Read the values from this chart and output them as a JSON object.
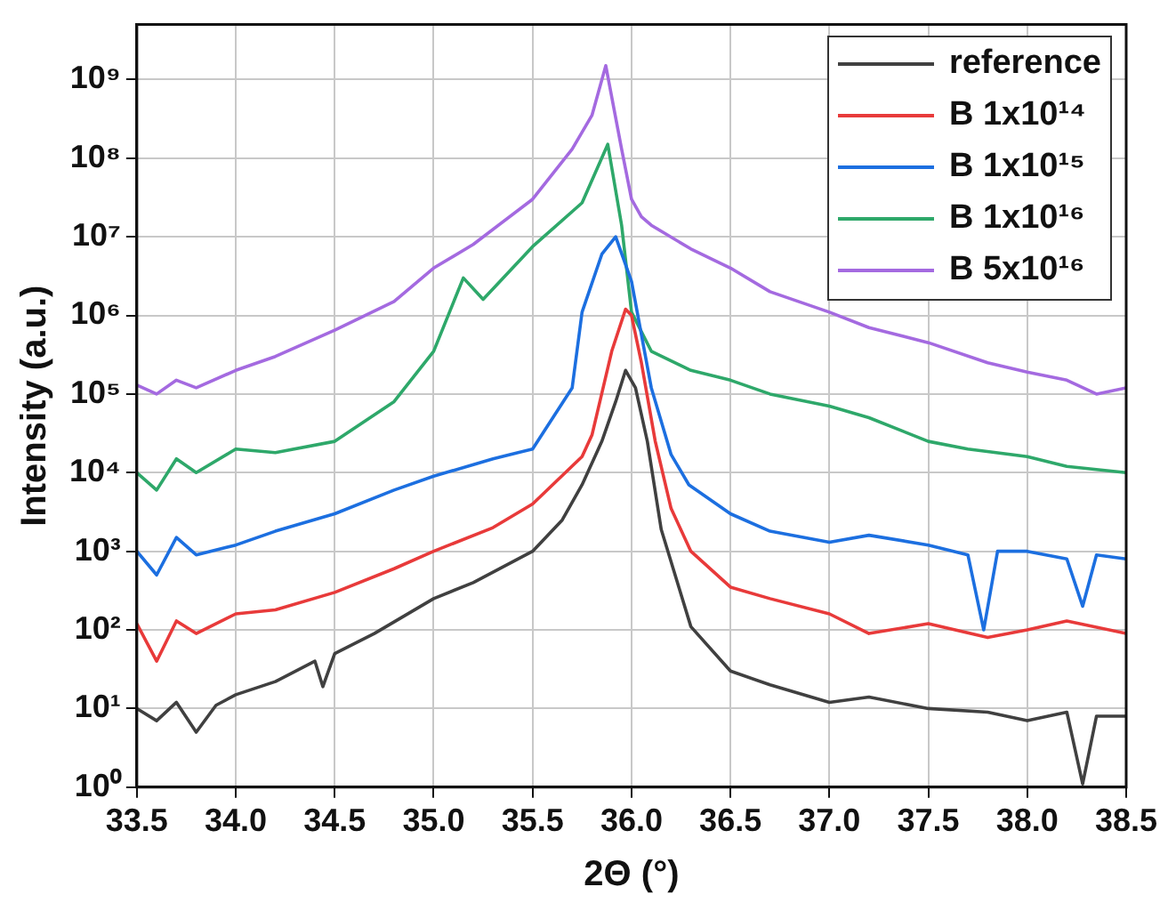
{
  "chart_data": {
    "type": "line",
    "xlabel": "2Θ (°)",
    "ylabel": "Intensity (a.u.)",
    "log": "y",
    "grid": true,
    "legend": "top right",
    "marker": "none",
    "line_style": "solid",
    "xlim": [
      33.5,
      38.5
    ],
    "xticks": [
      33.5,
      {
        "value": 34,
        "label": "34.0"
      },
      34.5,
      {
        "value": 35,
        "label": "35.0"
      },
      35.5,
      {
        "value": 36,
        "label": "36.0"
      },
      36.5,
      {
        "value": 37,
        "label": "37.0"
      },
      37.5,
      {
        "value": 38,
        "label": "38.0"
      },
      38.5
    ],
    "ylim": [
      1,
      5000000000
    ],
    "yticks": [
      {
        "value": 1,
        "label": "10⁰"
      },
      {
        "value": 10,
        "label": "10¹"
      },
      {
        "value": 100,
        "label": "10²"
      },
      {
        "value": 1000,
        "label": "10³"
      },
      {
        "value": 10000,
        "label": "10⁴"
      },
      {
        "value": 100000,
        "label": "10⁵"
      },
      {
        "value": 1000000,
        "label": "10⁶"
      },
      {
        "value": 10000000,
        "label": "10⁷"
      },
      {
        "value": 100000000,
        "label": "10⁸"
      },
      {
        "value": 1000000000,
        "label": "10⁹"
      }
    ],
    "series": [
      {
        "name": "reference",
        "color": "#404040",
        "x": [
          33.5,
          33.6,
          33.7,
          33.8,
          33.9,
          34.0,
          34.2,
          34.4,
          34.44,
          34.5,
          34.7,
          35.0,
          35.2,
          35.5,
          35.65,
          35.75,
          35.85,
          35.92,
          35.97,
          36.02,
          36.08,
          36.15,
          36.3,
          36.5,
          36.7,
          37.0,
          37.2,
          37.5,
          37.8,
          38.0,
          38.2,
          38.28,
          38.35,
          38.5
        ],
        "values": [
          10,
          7,
          12,
          5,
          11,
          15,
          22,
          40,
          19,
          50,
          90,
          250,
          400,
          1000,
          2500,
          7000,
          25000,
          80000,
          200000,
          120000,
          25000,
          1900,
          110,
          30,
          20,
          12,
          14,
          10,
          9,
          7,
          9,
          1.1,
          8,
          8
        ]
      },
      {
        "name": "B 1x10¹⁴",
        "color": "#e83a3a",
        "x": [
          33.5,
          33.6,
          33.7,
          33.8,
          34.0,
          34.2,
          34.5,
          34.8,
          35.0,
          35.3,
          35.5,
          35.75,
          35.8,
          35.9,
          35.97,
          36.0,
          36.05,
          36.12,
          36.2,
          36.3,
          36.5,
          36.7,
          37.0,
          37.2,
          37.5,
          37.8,
          38.0,
          38.2,
          38.5
        ],
        "values": [
          120,
          40,
          130,
          90,
          160,
          180,
          300,
          600,
          1000,
          2000,
          4000,
          16000,
          30000,
          350000,
          1200000,
          1000000,
          250000,
          25000,
          3500,
          1000,
          350,
          250,
          160,
          90,
          120,
          80,
          100,
          130,
          90
        ]
      },
      {
        "name": "B 1x10¹⁵",
        "color": "#1c6fe0",
        "x": [
          33.5,
          33.6,
          33.7,
          33.8,
          34.0,
          34.2,
          34.5,
          34.8,
          35.0,
          35.3,
          35.5,
          35.7,
          35.75,
          35.85,
          35.92,
          36.0,
          36.1,
          36.2,
          36.29,
          36.5,
          36.7,
          37.0,
          37.2,
          37.5,
          37.7,
          37.78,
          37.85,
          38.0,
          38.2,
          38.28,
          38.35,
          38.5
        ],
        "values": [
          1000,
          500,
          1500,
          900,
          1200,
          1800,
          3000,
          6000,
          9000,
          15000,
          20000,
          120000,
          1100000,
          6000000,
          10000000,
          2700000,
          120000,
          17000,
          7000,
          3000,
          1800,
          1300,
          1600,
          1200,
          900,
          100,
          1000,
          1000,
          800,
          200,
          900,
          800
        ]
      },
      {
        "name": "B 1x10¹⁶",
        "color": "#2ea86a",
        "x": [
          33.5,
          33.6,
          33.7,
          33.8,
          34.0,
          34.2,
          34.5,
          34.8,
          35.0,
          35.15,
          35.25,
          35.5,
          35.75,
          35.88,
          35.95,
          36.0,
          36.1,
          36.3,
          36.5,
          36.7,
          37.0,
          37.2,
          37.5,
          37.7,
          38.0,
          38.2,
          38.5
        ],
        "values": [
          10000,
          6000,
          15000,
          10000,
          20000,
          18000,
          25000,
          80000,
          350000,
          3000000,
          1600000,
          7500000,
          27000000,
          150000000,
          14000000,
          1100000,
          350000,
          200000,
          150000,
          100000,
          70000,
          50000,
          25000,
          20000,
          16000,
          12000,
          10000
        ]
      },
      {
        "name": "B 5x10¹⁶",
        "color": "#a46ae0",
        "x": [
          33.5,
          33.6,
          33.7,
          33.8,
          34.0,
          34.2,
          34.5,
          34.8,
          35.0,
          35.2,
          35.5,
          35.7,
          35.8,
          35.87,
          35.95,
          36.0,
          36.05,
          36.1,
          36.3,
          36.5,
          36.7,
          37.0,
          37.2,
          37.5,
          37.8,
          38.0,
          38.2,
          38.35,
          38.5
        ],
        "values": [
          130000,
          100000,
          150000,
          120000,
          200000,
          300000,
          650000,
          1500000,
          4000000,
          8000000,
          30000000,
          130000000,
          350000000,
          1500000000,
          130000000,
          30000000,
          18000000,
          14000000,
          7000000,
          4000000,
          2000000,
          1100000,
          700000,
          450000,
          250000,
          190000,
          150000,
          100000,
          120000
        ]
      }
    ]
  }
}
